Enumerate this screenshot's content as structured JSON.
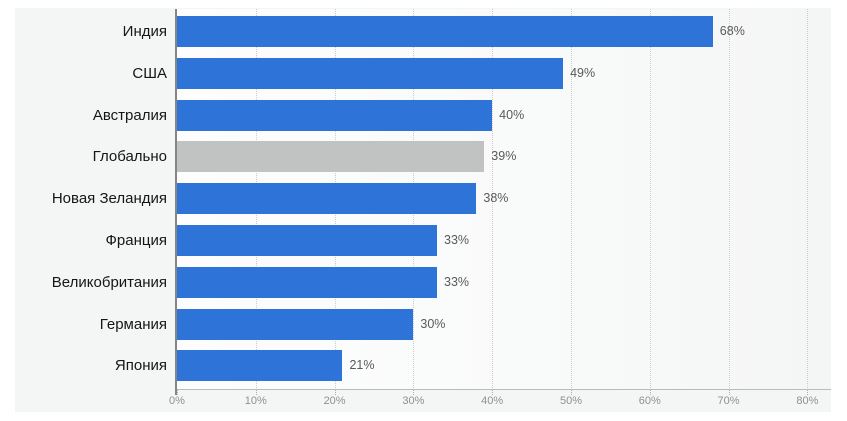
{
  "chart_data": {
    "type": "bar",
    "orientation": "horizontal",
    "title": "",
    "xlabel": "",
    "ylabel": "",
    "categories": [
      "Индия",
      "США",
      "Австралия",
      "Глобально",
      "Новая Зеландия",
      "Франция",
      "Великобритания",
      "Германия",
      "Япония"
    ],
    "values": [
      68,
      49,
      40,
      39,
      38,
      33,
      33,
      30,
      21
    ],
    "value_labels": [
      "68%",
      "49%",
      "40%",
      "39%",
      "38%",
      "33%",
      "33%",
      "30%",
      "21%"
    ],
    "highlight_index": 3,
    "bar_color": "#2e73d8",
    "highlight_color": "#c1c2c2",
    "xlim": [
      0,
      83
    ],
    "x_tick_values": [
      0,
      10,
      20,
      30,
      40,
      50,
      60,
      70,
      80
    ],
    "x_tick_labels": [
      "0%",
      "10%",
      "20%",
      "30%",
      "40%",
      "50%",
      "60%",
      "70%",
      "80%"
    ],
    "grid": "vertical-dotted",
    "legend": "none",
    "plot_background": "#f4f5f5"
  }
}
